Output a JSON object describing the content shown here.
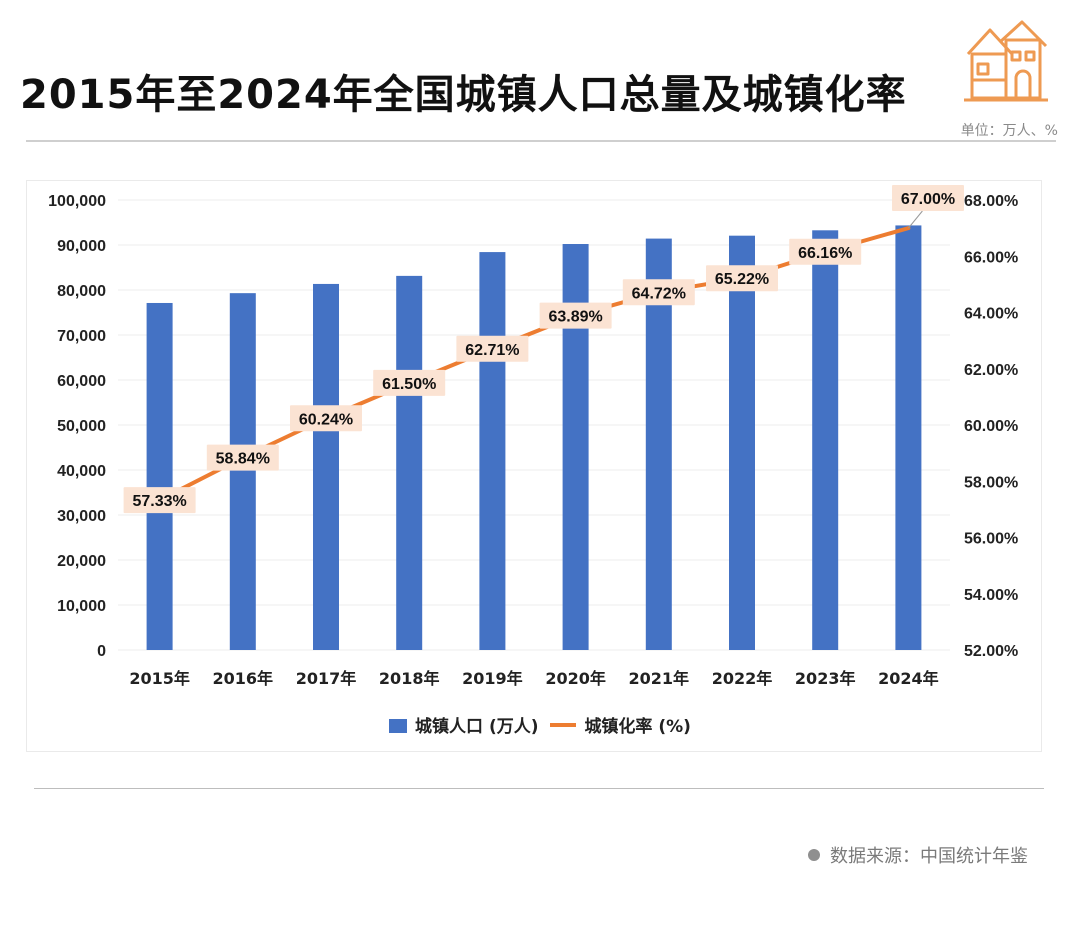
{
  "title": "2015年至2024年全国城镇人口总量及城镇化率",
  "unit_label": "单位：万人、%",
  "source_label": "数据来源：中国统计年鉴",
  "colors": {
    "bar": "#4472c4",
    "line": "#ed7d31",
    "label_bg": "#fbe3d3"
  },
  "icons": {
    "logo": "house-icon",
    "source_marker": "dot-icon"
  },
  "chart_data": {
    "type": "bar",
    "categories": [
      "2015年",
      "2016年",
      "2017年",
      "2018年",
      "2019年",
      "2020年",
      "2021年",
      "2022年",
      "2023年",
      "2024年"
    ],
    "series": [
      {
        "name": "城镇人口 (万人)",
        "type": "bar",
        "axis": "left",
        "values": [
          77116,
          79298,
          81347,
          83137,
          88426,
          90220,
          91425,
          92071,
          93267,
          94350
        ]
      },
      {
        "name": "城镇化率 (%)",
        "type": "line",
        "axis": "right",
        "values": [
          57.33,
          58.84,
          60.24,
          61.5,
          62.71,
          63.89,
          64.72,
          65.22,
          66.16,
          67.0
        ],
        "labels": [
          "57.33%",
          "58.84%",
          "60.24%",
          "61.50%",
          "62.71%",
          "63.89%",
          "64.72%",
          "65.22%",
          "66.16%",
          "67.00%"
        ]
      }
    ],
    "ylim": [
      0,
      100000
    ],
    "yticks": [
      "0",
      "10,000",
      "20,000",
      "30,000",
      "40,000",
      "50,000",
      "60,000",
      "70,000",
      "80,000",
      "90,000",
      "100,000"
    ],
    "y2lim": [
      52,
      68
    ],
    "y2ticks": [
      "52.00%",
      "54.00%",
      "56.00%",
      "58.00%",
      "60.00%",
      "62.00%",
      "64.00%",
      "66.00%",
      "68.00%"
    ],
    "grid": true,
    "legend": "bottom"
  }
}
